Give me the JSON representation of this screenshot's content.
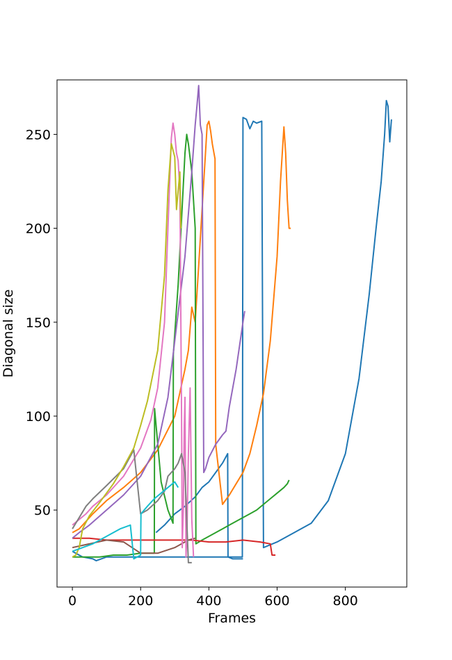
{
  "chart_data": {
    "type": "line",
    "title": "",
    "xlabel": "Frames",
    "ylabel": "Diagonal size",
    "xlim": [
      -45,
      980
    ],
    "ylim": [
      9,
      279
    ],
    "xticks": [
      0,
      200,
      400,
      600,
      800
    ],
    "yticks": [
      50,
      100,
      150,
      200,
      250
    ],
    "xtick_labels": [
      "0",
      "200",
      "400",
      "600",
      "800"
    ],
    "ytick_labels": [
      "50",
      "100",
      "150",
      "200",
      "250"
    ],
    "grid": false,
    "legend": "none",
    "series": [
      {
        "color": "#1f77b4",
        "x": [
          0,
          30,
          60,
          70,
          100,
          150,
          200,
          240,
          280,
          320,
          350,
          380,
          400,
          420,
          440,
          460,
          480,
          498,
          500,
          510,
          520,
          530,
          540,
          555,
          560,
          600,
          650,
          700,
          750,
          800,
          840,
          870,
          890,
          905,
          915,
          920,
          925,
          930,
          935
        ],
        "y": [
          28,
          25,
          24,
          23,
          25,
          25,
          25,
          25,
          25,
          25,
          25,
          25,
          25,
          25,
          25,
          25,
          25,
          25,
          259,
          258,
          253,
          257,
          256,
          257,
          30,
          33,
          38,
          43,
          55,
          80,
          120,
          165,
          200,
          225,
          250,
          268,
          265,
          246,
          258
        ]
      },
      {
        "color": "#1f77b4",
        "x": [
          245,
          270,
          300,
          330,
          360,
          380,
          400,
          420,
          440,
          455,
          456,
          470,
          490,
          500
        ],
        "y": [
          38,
          42,
          48,
          52,
          57,
          62,
          65,
          70,
          75,
          80,
          25,
          24,
          24,
          24
        ]
      },
      {
        "color": "#ff7f0e",
        "x": [
          0,
          20,
          40,
          60,
          100,
          150,
          200,
          250,
          300,
          330,
          340,
          350,
          360,
          370,
          380,
          390,
          395,
          400,
          405,
          410,
          415,
          418,
          420,
          440,
          460,
          480,
          500,
          520,
          540,
          560,
          580,
          600,
          610,
          620,
          625,
          630,
          635,
          640
        ],
        "y": [
          38,
          40,
          44,
          48,
          55,
          62,
          70,
          82,
          100,
          125,
          135,
          158,
          150,
          180,
          210,
          240,
          255,
          257,
          252,
          245,
          240,
          237,
          85,
          53,
          58,
          64,
          70,
          80,
          95,
          112,
          140,
          185,
          225,
          254,
          240,
          215,
          200,
          200
        ]
      },
      {
        "color": "#2ca02c",
        "x": [
          0,
          40,
          80,
          120,
          160,
          200,
          240,
          241,
          260,
          280,
          295,
          296,
          310,
          320,
          330,
          335,
          340,
          350,
          360,
          362,
          380,
          400,
          420,
          440,
          460,
          480,
          500,
          520,
          540,
          560,
          580,
          600,
          620,
          630,
          635
        ],
        "y": [
          25,
          25,
          25,
          26,
          26,
          27,
          27,
          104,
          65,
          50,
          43,
          133,
          170,
          205,
          240,
          250,
          245,
          230,
          200,
          32,
          34,
          36,
          38,
          40,
          42,
          44,
          46,
          48,
          50,
          53,
          56,
          59,
          62,
          64,
          66
        ]
      },
      {
        "color": "#d62728",
        "x": [
          0,
          50,
          100,
          150,
          200,
          250,
          300,
          350,
          400,
          450,
          500,
          550,
          580,
          585,
          595
        ],
        "y": [
          35,
          35,
          34,
          34,
          34,
          34,
          34,
          34,
          33,
          33,
          34,
          33,
          32,
          26,
          26
        ]
      },
      {
        "color": "#9467bd",
        "x": [
          0,
          20,
          50,
          100,
          150,
          200,
          250,
          280,
          300,
          330,
          350,
          360,
          365,
          370,
          375,
          380,
          385,
          390,
          395,
          400,
          420,
          440,
          450,
          460,
          480,
          500,
          505
        ],
        "y": [
          35,
          38,
          42,
          50,
          58,
          68,
          85,
          110,
          140,
          185,
          230,
          255,
          265,
          276,
          255,
          250,
          70,
          72,
          75,
          78,
          85,
          90,
          92,
          105,
          125,
          150,
          156
        ]
      },
      {
        "color": "#8c564b",
        "x": [
          0,
          50,
          100,
          150,
          200,
          250,
          300,
          320,
          340,
          360
        ],
        "y": [
          30,
          32,
          34,
          33,
          27,
          27,
          30,
          32,
          34,
          35
        ]
      },
      {
        "color": "#e377c2",
        "x": [
          0,
          20,
          40,
          60,
          100,
          150,
          200,
          230,
          250,
          270,
          280,
          290,
          295,
          300,
          305,
          310,
          315,
          320,
          322,
          325,
          328,
          330,
          333,
          336,
          340,
          345,
          350,
          355
        ],
        "y": [
          42,
          45,
          48,
          52,
          58,
          68,
          83,
          98,
          115,
          150,
          200,
          248,
          256,
          250,
          240,
          236,
          220,
          100,
          30,
          50,
          95,
          110,
          25,
          40,
          80,
          115,
          45,
          25
        ]
      },
      {
        "color": "#7f7f7f",
        "x": [
          0,
          20,
          40,
          60,
          100,
          150,
          180,
          200,
          220,
          250,
          270,
          280,
          290,
          300,
          310,
          320,
          330,
          340,
          345,
          350
        ],
        "y": [
          40,
          46,
          52,
          56,
          63,
          72,
          82,
          48,
          50,
          55,
          60,
          68,
          70,
          72,
          75,
          80,
          70,
          22,
          22,
          22
        ]
      },
      {
        "color": "#bcbd22",
        "x": [
          0,
          10,
          20,
          30,
          50,
          80,
          120,
          150,
          180,
          200,
          220,
          250,
          270,
          280,
          290,
          300,
          305,
          310,
          315,
          318
        ],
        "y": [
          25,
          26,
          30,
          40,
          47,
          54,
          64,
          73,
          83,
          95,
          108,
          135,
          175,
          220,
          245,
          238,
          210,
          220,
          230,
          200
        ]
      },
      {
        "color": "#17becf",
        "x": [
          0,
          30,
          60,
          100,
          140,
          170,
          180,
          200,
          201,
          220,
          240,
          260,
          280,
          300,
          310
        ],
        "y": [
          28,
          30,
          32,
          36,
          40,
          42,
          24,
          26,
          48,
          52,
          56,
          59,
          62,
          65,
          62
        ]
      }
    ]
  }
}
